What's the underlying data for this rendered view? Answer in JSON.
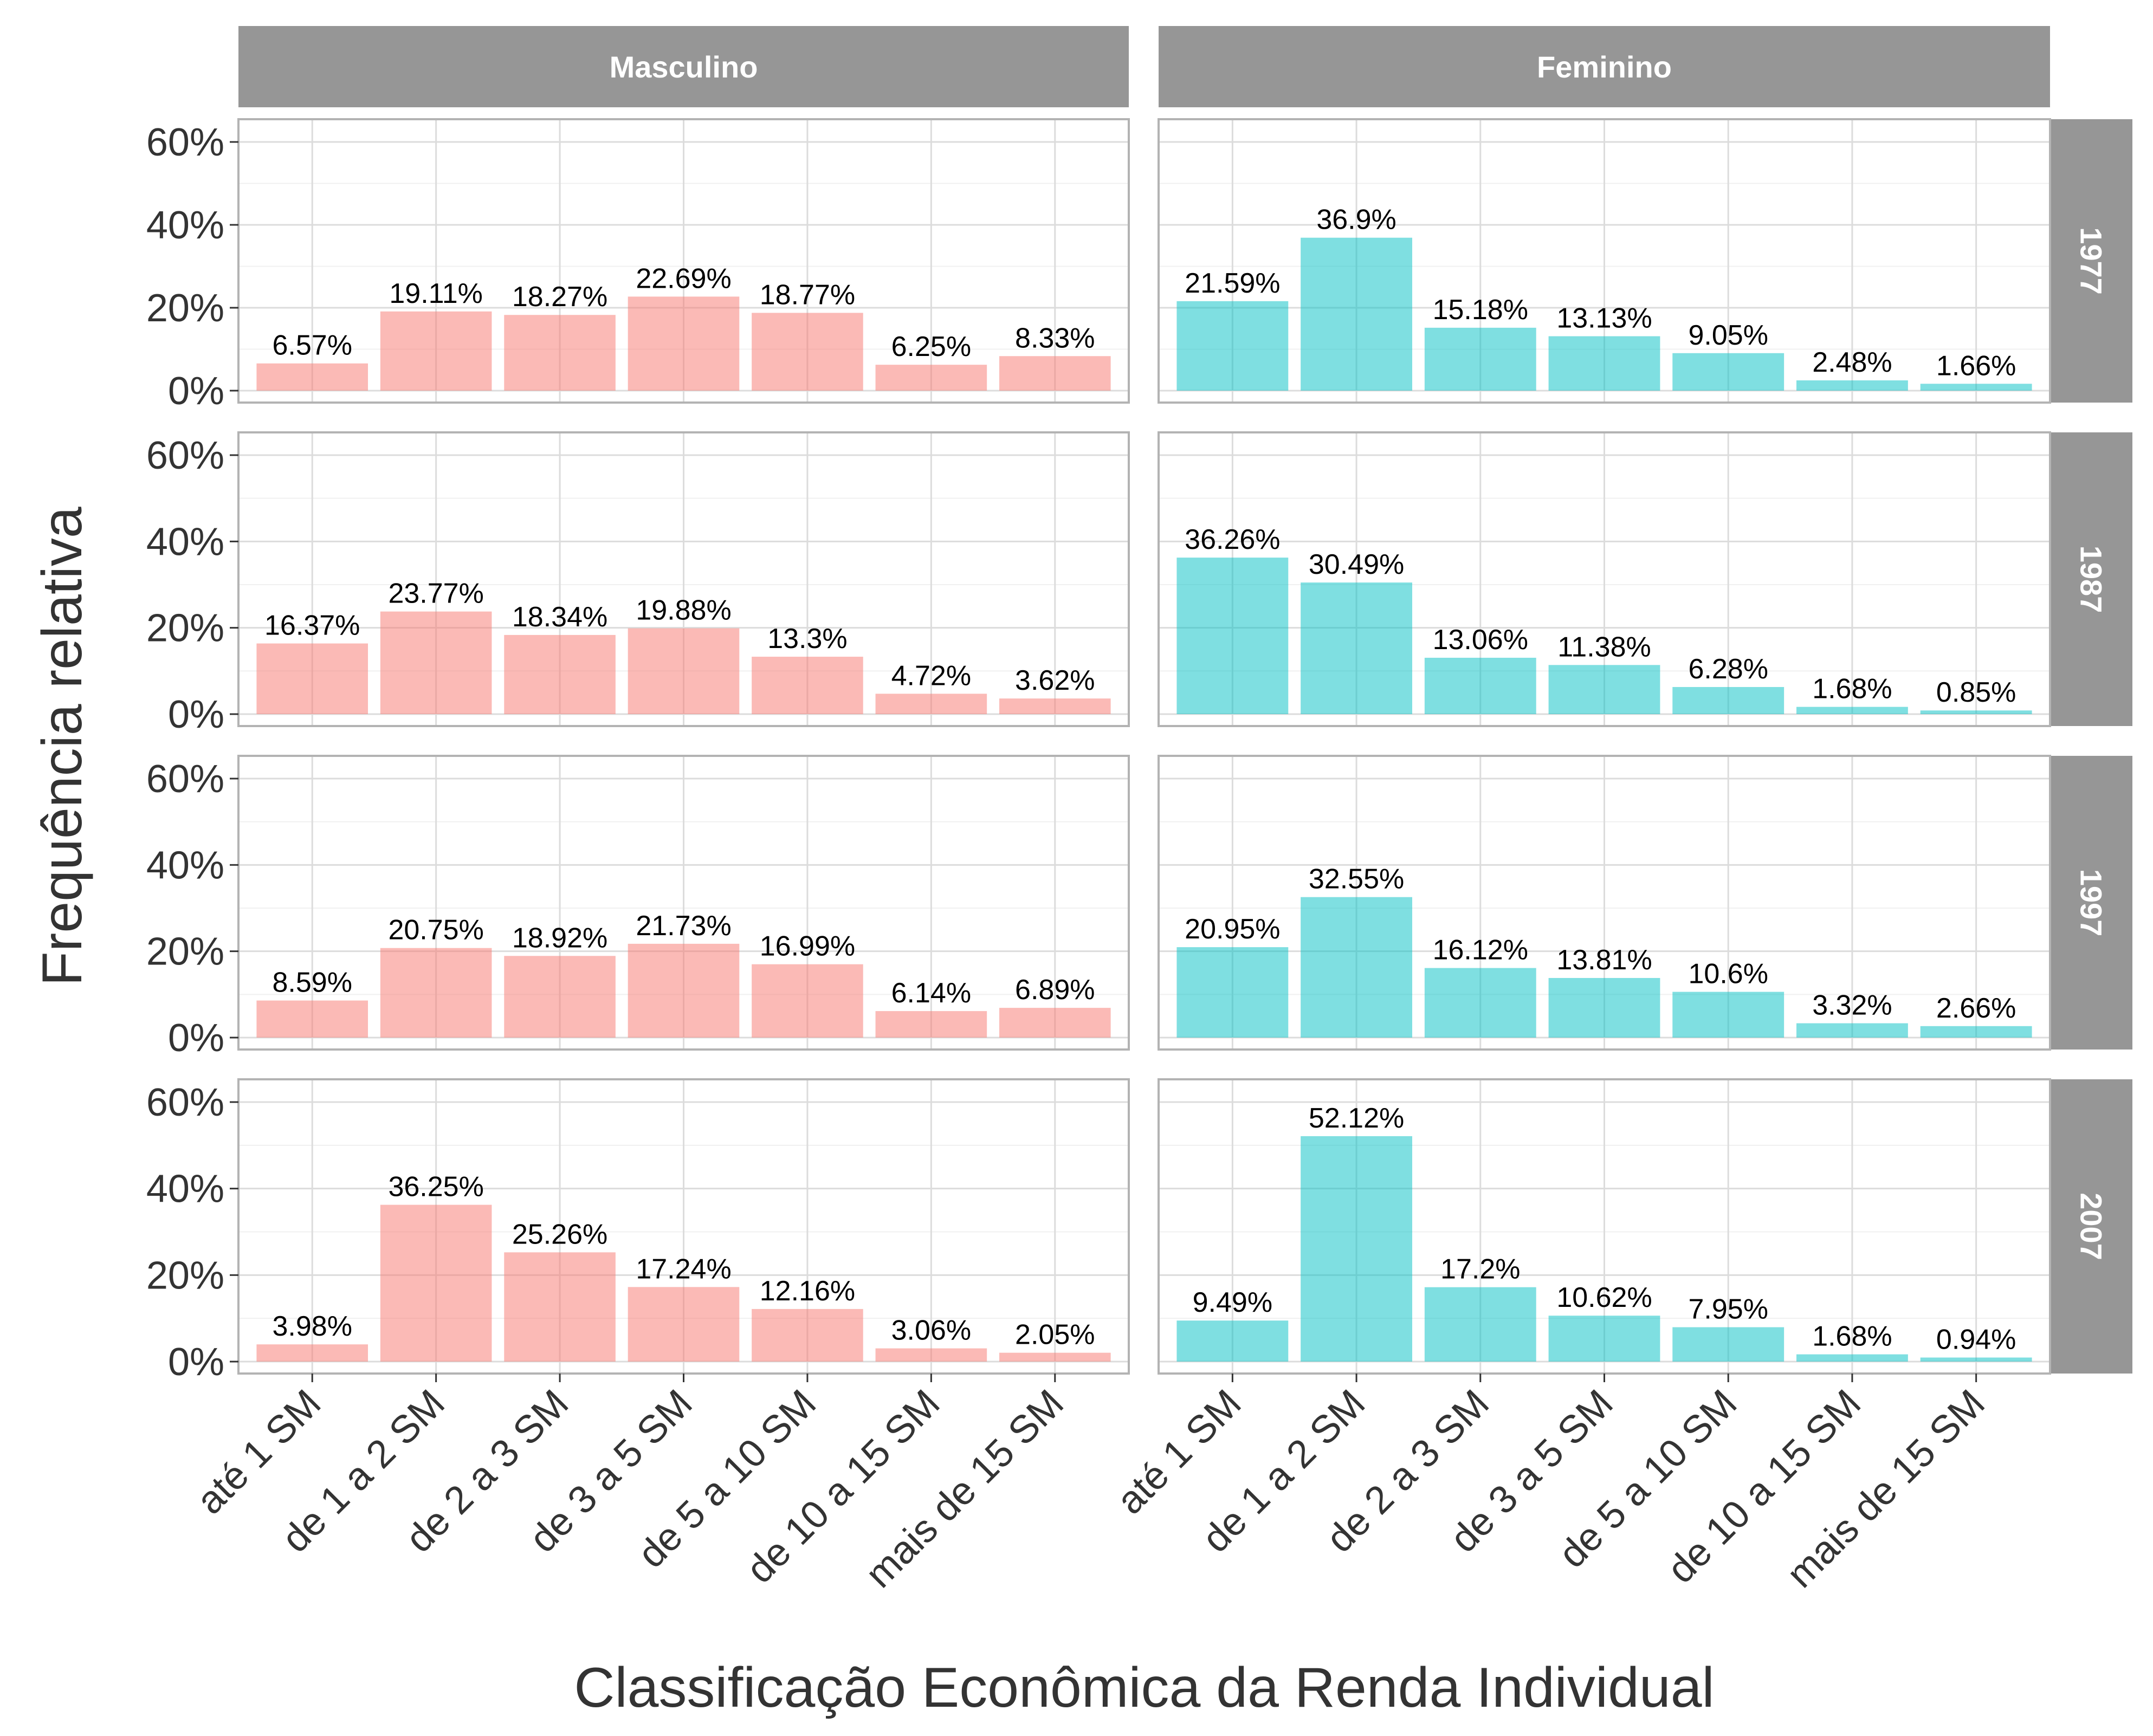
{
  "chart_data": {
    "type": "bar",
    "xlabel": "Classificação Econômica da Renda Individual",
    "ylabel": "Frequência relativa",
    "ylim": [
      0,
      0.6
    ],
    "yticks": [
      "0%",
      "20%",
      "40%",
      "60%"
    ],
    "grid": true,
    "categories": [
      "até 1 SM",
      "de 1 a 2 SM",
      "de 2 a 3 SM",
      "de 3 a 5 SM",
      "de 5 a 10 SM",
      "de 10 a 15 SM",
      "mais de 15 SM"
    ],
    "columns": [
      "Masculino",
      "Feminino"
    ],
    "rows": [
      "1977",
      "1987",
      "1997",
      "2007"
    ],
    "colors": {
      "Masculino": "#F8766D",
      "Feminino": "#00BFC4"
    },
    "panels": [
      {
        "column": "Masculino",
        "row": "1977",
        "values": [
          6.57,
          19.11,
          18.27,
          22.69,
          18.77,
          6.25,
          8.33
        ],
        "labels": [
          "6.57%",
          "19.11%",
          "18.27%",
          "22.69%",
          "18.77%",
          "6.25%",
          "8.33%"
        ]
      },
      {
        "column": "Feminino",
        "row": "1977",
        "values": [
          21.59,
          36.9,
          15.18,
          13.13,
          9.05,
          2.48,
          1.66
        ],
        "labels": [
          "21.59%",
          "36.9%",
          "15.18%",
          "13.13%",
          "9.05%",
          "2.48%",
          "1.66%"
        ]
      },
      {
        "column": "Masculino",
        "row": "1987",
        "values": [
          16.37,
          23.77,
          18.34,
          19.88,
          13.3,
          4.72,
          3.62
        ],
        "labels": [
          "16.37%",
          "23.77%",
          "18.34%",
          "19.88%",
          "13.3%",
          "4.72%",
          "3.62%"
        ]
      },
      {
        "column": "Feminino",
        "row": "1987",
        "values": [
          36.26,
          30.49,
          13.06,
          11.38,
          6.28,
          1.68,
          0.85
        ],
        "labels": [
          "36.26%",
          "30.49%",
          "13.06%",
          "11.38%",
          "6.28%",
          "1.68%",
          "0.85%"
        ]
      },
      {
        "column": "Masculino",
        "row": "1997",
        "values": [
          8.59,
          20.75,
          18.92,
          21.73,
          16.99,
          6.14,
          6.89
        ],
        "labels": [
          "8.59%",
          "20.75%",
          "18.92%",
          "21.73%",
          "16.99%",
          "6.14%",
          "6.89%"
        ]
      },
      {
        "column": "Feminino",
        "row": "1997",
        "values": [
          20.95,
          32.55,
          16.12,
          13.81,
          10.6,
          3.32,
          2.66
        ],
        "labels": [
          "20.95%",
          "32.55%",
          "16.12%",
          "13.81%",
          "10.6%",
          "3.32%",
          "2.66%"
        ]
      },
      {
        "column": "Masculino",
        "row": "2007",
        "values": [
          3.98,
          36.25,
          25.26,
          17.24,
          12.16,
          3.06,
          2.05
        ],
        "labels": [
          "3.98%",
          "36.25%",
          "25.26%",
          "17.24%",
          "12.16%",
          "3.06%",
          "2.05%"
        ]
      },
      {
        "column": "Feminino",
        "row": "2007",
        "values": [
          9.49,
          52.12,
          17.2,
          10.62,
          7.95,
          1.68,
          0.94
        ],
        "labels": [
          "9.49%",
          "52.12%",
          "17.2%",
          "10.62%",
          "7.95%",
          "1.68%",
          "0.94%"
        ]
      }
    ]
  }
}
